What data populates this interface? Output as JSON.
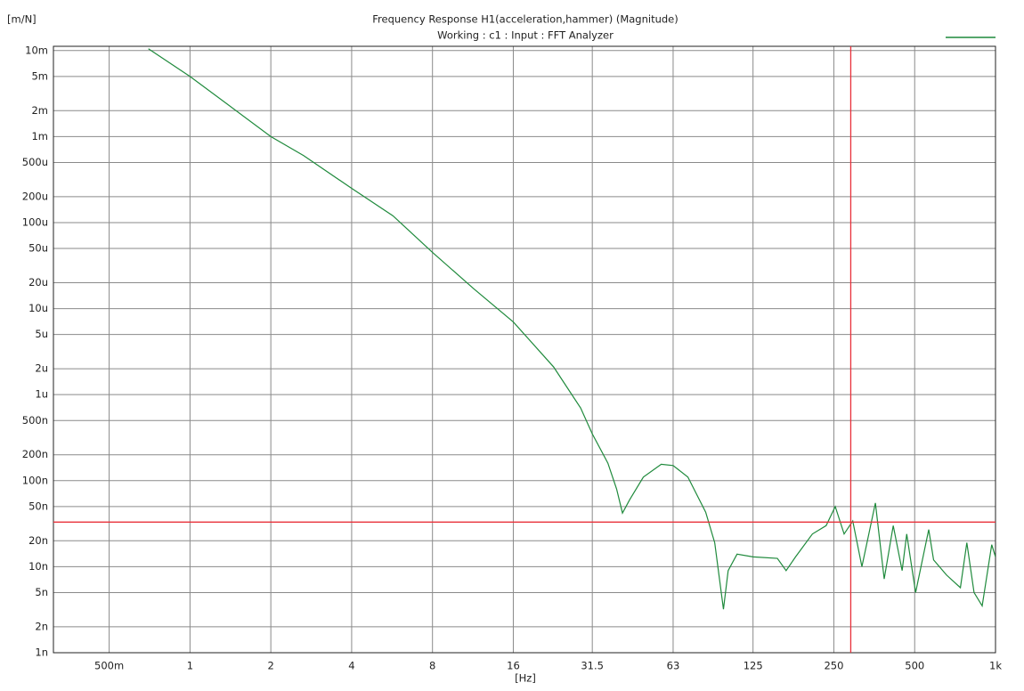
{
  "chart_data": {
    "type": "line",
    "title": "Frequency Response H1(acceleration,hammer) (Magnitude)",
    "subtitle": "Working : c1 : Input : FFT Analyzer",
    "y_label": "[m/N]",
    "x_label": "[Hz]",
    "xscale": "log",
    "yscale": "log",
    "grid": true,
    "legend": "top-right",
    "xlim": [
      0.31,
      1000
    ],
    "ylim": [
      1e-09,
      0.0112
    ],
    "xticks": [
      {
        "value": 0.5,
        "label": "500m"
      },
      1,
      2,
      4,
      8,
      16,
      31.5,
      63,
      125,
      250,
      500,
      {
        "value": 1000,
        "label": "1k"
      }
    ],
    "yticks": [
      {
        "value": 0.01,
        "label": "10m"
      },
      {
        "value": 0.005,
        "label": "5m"
      },
      {
        "value": 0.002,
        "label": "2m"
      },
      {
        "value": 0.001,
        "label": "1m"
      },
      {
        "value": 0.0005,
        "label": "500u"
      },
      {
        "value": 0.0002,
        "label": "200u"
      },
      {
        "value": 0.0001,
        "label": "100u"
      },
      {
        "value": 5e-05,
        "label": "50u"
      },
      {
        "value": 2e-05,
        "label": "20u"
      },
      {
        "value": 1e-05,
        "label": "10u"
      },
      {
        "value": 5e-06,
        "label": "5u"
      },
      {
        "value": 2e-06,
        "label": "2u"
      },
      {
        "value": 1e-06,
        "label": "1u"
      },
      {
        "value": 5e-07,
        "label": "500n"
      },
      {
        "value": 2e-07,
        "label": "200n"
      },
      {
        "value": 1e-07,
        "label": "100n"
      },
      {
        "value": 5e-08,
        "label": "50n"
      },
      {
        "value": 2e-08,
        "label": "20n"
      },
      {
        "value": 1e-08,
        "label": "10n"
      },
      {
        "value": 5e-09,
        "label": "5n"
      },
      {
        "value": 2e-09,
        "label": "2n"
      },
      {
        "value": 1e-09,
        "label": "1n"
      }
    ],
    "cursor": {
      "x": 289,
      "y": 3.3e-08,
      "color": "#e8303a"
    },
    "x": [
      0.7,
      1,
      2,
      2.65,
      4,
      5.7,
      8,
      11.4,
      16,
      22.6,
      28.5,
      31.5,
      36,
      38.8,
      40.8,
      43.4,
      48.8,
      56.9,
      63,
      71.5,
      83.3,
      90,
      97,
      101,
      109,
      125,
      154,
      166,
      180,
      208,
      234,
      253,
      273,
      294,
      318,
      357,
      385,
      416,
      449,
      467,
      504,
      564,
      588,
      657,
      740,
      782,
      832,
      892,
      968,
      1000
    ],
    "series": [
      {
        "color": "#1f8a3c",
        "values": [
          0.0105,
          0.005,
          0.001,
          0.0006,
          0.00025,
          0.00012,
          4.5e-05,
          1.7e-05,
          7e-06,
          2.1e-06,
          7e-07,
          3.5e-07,
          1.6e-07,
          8e-08,
          4.2e-08,
          6e-08,
          1.1e-07,
          1.55e-07,
          1.5e-07,
          1.1e-07,
          4.3e-08,
          1.9e-08,
          3.2e-09,
          9e-09,
          1.4e-08,
          1.3e-08,
          1.25e-08,
          9e-09,
          1.3e-08,
          2.4e-08,
          3e-08,
          5e-08,
          2.4e-08,
          3.4e-08,
          1e-08,
          5.5e-08,
          7.2e-09,
          3e-08,
          9e-09,
          2.4e-08,
          5e-09,
          2.7e-08,
          1.2e-08,
          8e-09,
          5.7e-09,
          1.9e-08,
          5e-09,
          3.5e-09,
          1.8e-08,
          1.3e-08
        ]
      }
    ]
  }
}
